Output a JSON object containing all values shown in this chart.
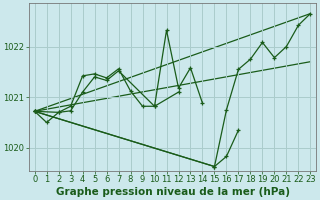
{
  "background_color": "#cce8ec",
  "grid_color": "#aacccc",
  "line_color": "#1a5c1a",
  "xlabel": "Graphe pression niveau de la mer (hPa)",
  "xlabel_fontsize": 7.5,
  "tick_fontsize": 6,
  "xlim": [
    -0.5,
    23.5
  ],
  "ylim": [
    1019.55,
    1022.85
  ],
  "yticks": [
    1020,
    1021,
    1022
  ],
  "xticks": [
    0,
    1,
    2,
    3,
    4,
    5,
    6,
    7,
    8,
    9,
    10,
    11,
    12,
    13,
    14,
    15,
    16,
    17,
    18,
    19,
    20,
    21,
    22,
    23
  ],
  "series1_x": [
    0,
    1,
    2,
    3,
    4,
    5,
    6,
    7,
    8,
    9,
    10,
    11,
    12,
    13,
    14
  ],
  "series1_y": [
    1020.72,
    1020.5,
    1020.7,
    1020.82,
    1021.42,
    1021.46,
    1021.38,
    1021.56,
    1021.12,
    1020.82,
    1020.82,
    1022.32,
    1021.18,
    1021.58,
    1020.88
  ],
  "series2_x": [
    0,
    2,
    3,
    4,
    5,
    6,
    7,
    10,
    12
  ],
  "series2_y": [
    1020.72,
    1020.7,
    1020.73,
    1021.1,
    1021.4,
    1021.33,
    1021.52,
    1020.82,
    1021.1
  ],
  "series3_x": [
    0,
    15,
    16,
    17
  ],
  "series3_y": [
    1020.72,
    1019.63,
    1019.83,
    1020.35
  ],
  "series4_x": [
    0,
    15,
    16,
    17,
    18,
    19,
    20,
    21,
    22,
    23
  ],
  "series4_y": [
    1020.72,
    1019.63,
    1020.75,
    1021.55,
    1021.75,
    1022.08,
    1021.78,
    1022.0,
    1022.42,
    1022.65
  ],
  "trend1_x": [
    0,
    23
  ],
  "trend1_y": [
    1020.72,
    1022.65
  ],
  "trend2_x": [
    0,
    23
  ],
  "trend2_y": [
    1020.72,
    1021.7
  ]
}
